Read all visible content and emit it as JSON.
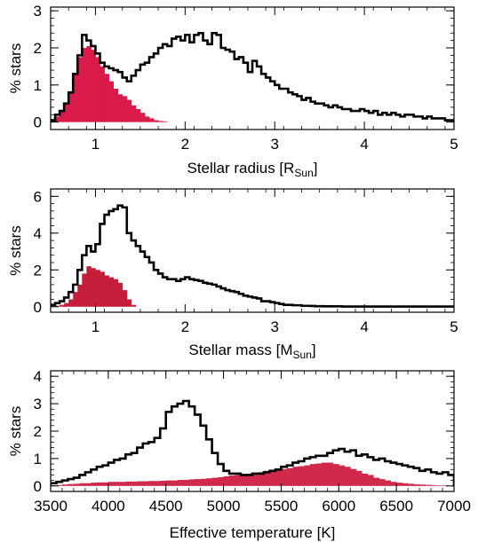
{
  "chart_data": [
    {
      "type": "bar",
      "xlabel": "Stellar radius [R",
      "xlabel_sub": "Sun",
      "xlabel_end": "]",
      "ylabel": "% stars",
      "xlim": [
        0.5,
        5.0
      ],
      "ylim": [
        -0.2,
        3.1
      ],
      "xticks": [
        1,
        2,
        3,
        4,
        5
      ],
      "yticks": [
        0,
        1,
        2,
        3
      ],
      "bin_width": 0.05,
      "series": [
        {
          "style": "step",
          "color": "#000000",
          "x": [
            0.5,
            0.55,
            0.6,
            0.65,
            0.7,
            0.75,
            0.8,
            0.85,
            0.9,
            0.95,
            1.0,
            1.05,
            1.1,
            1.15,
            1.2,
            1.25,
            1.3,
            1.35,
            1.4,
            1.45,
            1.5,
            1.55,
            1.6,
            1.65,
            1.7,
            1.75,
            1.8,
            1.85,
            1.9,
            1.95,
            2.0,
            2.05,
            2.1,
            2.15,
            2.2,
            2.25,
            2.3,
            2.35,
            2.4,
            2.45,
            2.5,
            2.55,
            2.6,
            2.65,
            2.7,
            2.75,
            2.8,
            2.85,
            2.9,
            2.95,
            3.0,
            3.05,
            3.1,
            3.15,
            3.2,
            3.25,
            3.3,
            3.35,
            3.4,
            3.45,
            3.5,
            3.55,
            3.6,
            3.65,
            3.7,
            3.75,
            3.8,
            3.85,
            3.9,
            3.95,
            4.0,
            4.05,
            4.1,
            4.15,
            4.2,
            4.25,
            4.3,
            4.35,
            4.4,
            4.45,
            4.5,
            4.55,
            4.6,
            4.65,
            4.7,
            4.75,
            4.8,
            4.85,
            4.9,
            4.95
          ],
          "values": [
            0.05,
            0.2,
            0.3,
            0.5,
            0.8,
            1.3,
            1.8,
            2.35,
            2.2,
            2.05,
            1.85,
            1.6,
            1.5,
            1.45,
            1.4,
            1.35,
            1.2,
            1.1,
            1.25,
            1.4,
            1.55,
            1.6,
            1.75,
            1.85,
            2.0,
            2.1,
            2.05,
            2.25,
            2.3,
            2.2,
            2.35,
            2.15,
            2.35,
            2.4,
            2.2,
            2.1,
            2.4,
            2.35,
            2.0,
            1.95,
            1.9,
            1.7,
            1.75,
            1.6,
            1.35,
            1.65,
            1.5,
            1.3,
            1.2,
            1.1,
            1.0,
            0.9,
            0.9,
            0.8,
            0.75,
            0.7,
            0.6,
            0.65,
            0.55,
            0.5,
            0.5,
            0.45,
            0.4,
            0.45,
            0.4,
            0.35,
            0.35,
            0.3,
            0.3,
            0.35,
            0.3,
            0.25,
            0.3,
            0.2,
            0.25,
            0.2,
            0.25,
            0.2,
            0.15,
            0.2,
            0.2,
            0.15,
            0.15,
            0.1,
            0.15,
            0.1,
            0.1,
            0.1,
            0.05,
            0.05
          ]
        },
        {
          "style": "filled",
          "color": "#d91a4a",
          "x": [
            0.5,
            0.55,
            0.6,
            0.65,
            0.7,
            0.75,
            0.8,
            0.85,
            0.9,
            0.95,
            1.0,
            1.05,
            1.1,
            1.15,
            1.2,
            1.25,
            1.3,
            1.35,
            1.4,
            1.45,
            1.5,
            1.55,
            1.6,
            1.65,
            1.7,
            1.75
          ],
          "values": [
            0.05,
            0.15,
            0.3,
            0.5,
            0.8,
            1.3,
            1.75,
            2.0,
            2.05,
            1.95,
            1.75,
            1.5,
            1.3,
            1.1,
            0.9,
            0.75,
            0.7,
            0.6,
            0.45,
            0.35,
            0.25,
            0.15,
            0.1,
            0.05,
            0.03,
            0.02
          ]
        }
      ]
    },
    {
      "type": "bar",
      "xlabel": "Stellar mass [M",
      "xlabel_sub": "Sun",
      "xlabel_end": "]",
      "ylabel": "% stars",
      "xlim": [
        0.5,
        5.0
      ],
      "ylim": [
        -0.3,
        6.4
      ],
      "xticks": [
        1,
        2,
        3,
        4,
        5
      ],
      "yticks": [
        0,
        2,
        4,
        6
      ],
      "bin_width": 0.05,
      "series": [
        {
          "style": "step",
          "color": "#000000",
          "x": [
            0.5,
            0.55,
            0.6,
            0.65,
            0.7,
            0.75,
            0.8,
            0.85,
            0.9,
            0.95,
            1.0,
            1.05,
            1.1,
            1.15,
            1.2,
            1.25,
            1.3,
            1.35,
            1.4,
            1.45,
            1.5,
            1.55,
            1.6,
            1.65,
            1.7,
            1.75,
            1.8,
            1.85,
            1.9,
            1.95,
            2.0,
            2.05,
            2.1,
            2.15,
            2.2,
            2.25,
            2.3,
            2.35,
            2.4,
            2.45,
            2.5,
            2.55,
            2.6,
            2.65,
            2.7,
            2.75,
            2.8,
            2.85,
            2.9,
            2.95,
            3.0,
            3.05,
            3.1,
            3.15,
            3.2,
            3.25,
            3.3,
            3.35,
            3.4,
            3.45,
            3.5,
            3.55,
            3.6,
            3.65,
            3.7,
            3.75,
            3.8,
            3.85,
            3.9,
            3.95,
            4.0,
            4.05,
            4.1,
            4.15,
            4.2,
            4.25,
            4.3,
            4.35,
            4.4,
            4.45,
            4.5,
            4.55,
            4.6,
            4.65,
            4.7,
            4.75,
            4.8,
            4.85,
            4.9,
            4.95
          ],
          "values": [
            0.1,
            0.2,
            0.3,
            0.5,
            0.8,
            1.2,
            2.0,
            2.8,
            3.3,
            3.0,
            3.4,
            4.5,
            5.0,
            5.2,
            5.3,
            5.5,
            5.4,
            4.0,
            3.6,
            3.3,
            3.0,
            2.7,
            2.4,
            2.0,
            1.8,
            1.6,
            1.5,
            1.5,
            1.4,
            1.5,
            1.6,
            1.5,
            1.45,
            1.4,
            1.3,
            1.25,
            1.2,
            1.1,
            1.0,
            0.9,
            0.85,
            0.8,
            0.7,
            0.6,
            0.55,
            0.5,
            0.45,
            0.3,
            0.3,
            0.25,
            0.2,
            0.15,
            0.1,
            0.1,
            0.08,
            0.08,
            0.05,
            0.05,
            0.04,
            0.03,
            0.03,
            0.02,
            0.02,
            0.02,
            0.02,
            0.01,
            0.01,
            0.01,
            0.01,
            0.01,
            0.01,
            0.01,
            0.01,
            0.01,
            0.01,
            0.01,
            0.01,
            0.01,
            0.01,
            0.01,
            0.01,
            0.01,
            0.01,
            0.01,
            0.01,
            0.01,
            0.01,
            0.01,
            0.01,
            0.01
          ]
        },
        {
          "style": "filled",
          "color": "#c41e3a",
          "x": [
            0.5,
            0.55,
            0.6,
            0.65,
            0.7,
            0.75,
            0.8,
            0.85,
            0.9,
            0.95,
            1.0,
            1.05,
            1.1,
            1.15,
            1.2,
            1.25,
            1.3,
            1.35,
            1.4
          ],
          "values": [
            0.02,
            0.05,
            0.1,
            0.2,
            0.4,
            0.8,
            1.2,
            1.8,
            2.2,
            2.1,
            2.0,
            1.9,
            1.7,
            1.6,
            1.5,
            1.3,
            0.9,
            0.4,
            0.1
          ]
        }
      ]
    },
    {
      "type": "bar",
      "xlabel": "Effective temperature [K]",
      "ylabel": "% stars",
      "xlim": [
        3500,
        7000
      ],
      "ylim": [
        -0.2,
        4.2
      ],
      "xticks": [
        3500,
        4000,
        4500,
        5000,
        5500,
        6000,
        6500,
        7000
      ],
      "yticks": [
        0,
        1,
        2,
        3,
        4
      ],
      "bin_width": 50,
      "series": [
        {
          "style": "step",
          "color": "#000000",
          "x": [
            3500,
            3550,
            3600,
            3650,
            3700,
            3750,
            3800,
            3850,
            3900,
            3950,
            4000,
            4050,
            4100,
            4150,
            4200,
            4250,
            4300,
            4350,
            4400,
            4450,
            4500,
            4550,
            4600,
            4650,
            4700,
            4750,
            4800,
            4850,
            4900,
            4950,
            5000,
            5050,
            5100,
            5150,
            5200,
            5250,
            5300,
            5350,
            5400,
            5450,
            5500,
            5550,
            5600,
            5650,
            5700,
            5750,
            5800,
            5850,
            5900,
            5950,
            6000,
            6050,
            6100,
            6150,
            6200,
            6250,
            6300,
            6350,
            6400,
            6450,
            6500,
            6550,
            6600,
            6650,
            6700,
            6750,
            6800,
            6850,
            6900,
            6950
          ],
          "values": [
            0.1,
            0.15,
            0.2,
            0.25,
            0.3,
            0.4,
            0.5,
            0.6,
            0.7,
            0.75,
            0.85,
            0.95,
            1.0,
            1.15,
            1.2,
            1.4,
            1.55,
            1.6,
            1.75,
            2.1,
            2.7,
            2.9,
            3.0,
            3.1,
            2.9,
            2.6,
            2.2,
            1.7,
            1.2,
            0.8,
            0.55,
            0.45,
            0.45,
            0.4,
            0.4,
            0.45,
            0.45,
            0.5,
            0.55,
            0.6,
            0.7,
            0.75,
            0.85,
            0.9,
            1.0,
            1.05,
            1.1,
            1.1,
            1.2,
            1.3,
            1.35,
            1.25,
            1.3,
            1.1,
            1.15,
            1.05,
            0.95,
            1.0,
            0.9,
            0.85,
            0.8,
            0.75,
            0.7,
            0.65,
            0.55,
            0.6,
            0.5,
            0.45,
            0.5,
            0.4
          ]
        },
        {
          "style": "filled",
          "color": "#cf2a4c",
          "x": [
            3500,
            3550,
            3600,
            3650,
            3700,
            3750,
            3800,
            3850,
            3900,
            3950,
            4000,
            4050,
            4100,
            4150,
            4200,
            4250,
            4300,
            4350,
            4400,
            4450,
            4500,
            4550,
            4600,
            4650,
            4700,
            4750,
            4800,
            4850,
            4900,
            4950,
            5000,
            5050,
            5100,
            5150,
            5200,
            5250,
            5300,
            5350,
            5400,
            5450,
            5500,
            5550,
            5600,
            5650,
            5700,
            5750,
            5800,
            5850,
            5900,
            5950,
            6000,
            6050,
            6100,
            6150,
            6200,
            6250,
            6300,
            6350,
            6400,
            6450,
            6500,
            6550,
            6600,
            6650,
            6700,
            6750,
            6800,
            6850,
            6900,
            6950
          ],
          "values": [
            0.02,
            0.03,
            0.05,
            0.07,
            0.08,
            0.1,
            0.1,
            0.12,
            0.13,
            0.13,
            0.15,
            0.15,
            0.15,
            0.16,
            0.16,
            0.17,
            0.17,
            0.18,
            0.18,
            0.19,
            0.2,
            0.2,
            0.22,
            0.22,
            0.24,
            0.25,
            0.26,
            0.28,
            0.3,
            0.32,
            0.35,
            0.38,
            0.4,
            0.42,
            0.45,
            0.48,
            0.5,
            0.55,
            0.55,
            0.6,
            0.62,
            0.65,
            0.7,
            0.72,
            0.75,
            0.8,
            0.82,
            0.85,
            0.85,
            0.8,
            0.75,
            0.7,
            0.62,
            0.55,
            0.45,
            0.4,
            0.3,
            0.25,
            0.2,
            0.15,
            0.12,
            0.1,
            0.08,
            0.06,
            0.05,
            0.04,
            0.03,
            0.02,
            0.02,
            0.01
          ]
        }
      ]
    }
  ]
}
